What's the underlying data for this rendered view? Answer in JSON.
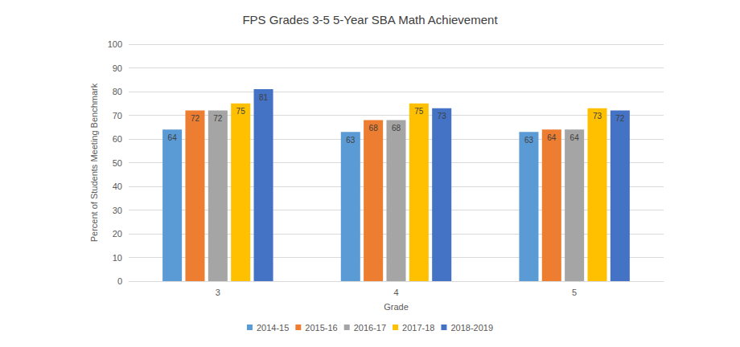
{
  "chart_data": {
    "type": "bar",
    "title": "FPS Grades 3-5 5-Year SBA Math Achievement",
    "x_label": "Grade",
    "y_label": "Percent of Students Meeting Benchmark",
    "categories": [
      "3",
      "4",
      "5"
    ],
    "series": [
      {
        "name": "2014-15",
        "color": "#5B9BD5",
        "values": [
          64,
          63,
          63
        ]
      },
      {
        "name": "2015-16",
        "color": "#ED7D31",
        "values": [
          72,
          68,
          64
        ]
      },
      {
        "name": "2016-17",
        "color": "#A5A5A5",
        "values": [
          72,
          68,
          64
        ]
      },
      {
        "name": "2017-18",
        "color": "#FFC000",
        "values": [
          75,
          75,
          73
        ]
      },
      {
        "name": "2018-2019",
        "color": "#4472C4",
        "values": [
          81,
          73,
          72
        ]
      }
    ],
    "ylim": [
      0,
      100
    ],
    "yticks": [
      0,
      10,
      20,
      30,
      40,
      50,
      60,
      70,
      80,
      90,
      100
    ],
    "grid": true,
    "legend": "bottom",
    "data_labels": true
  }
}
